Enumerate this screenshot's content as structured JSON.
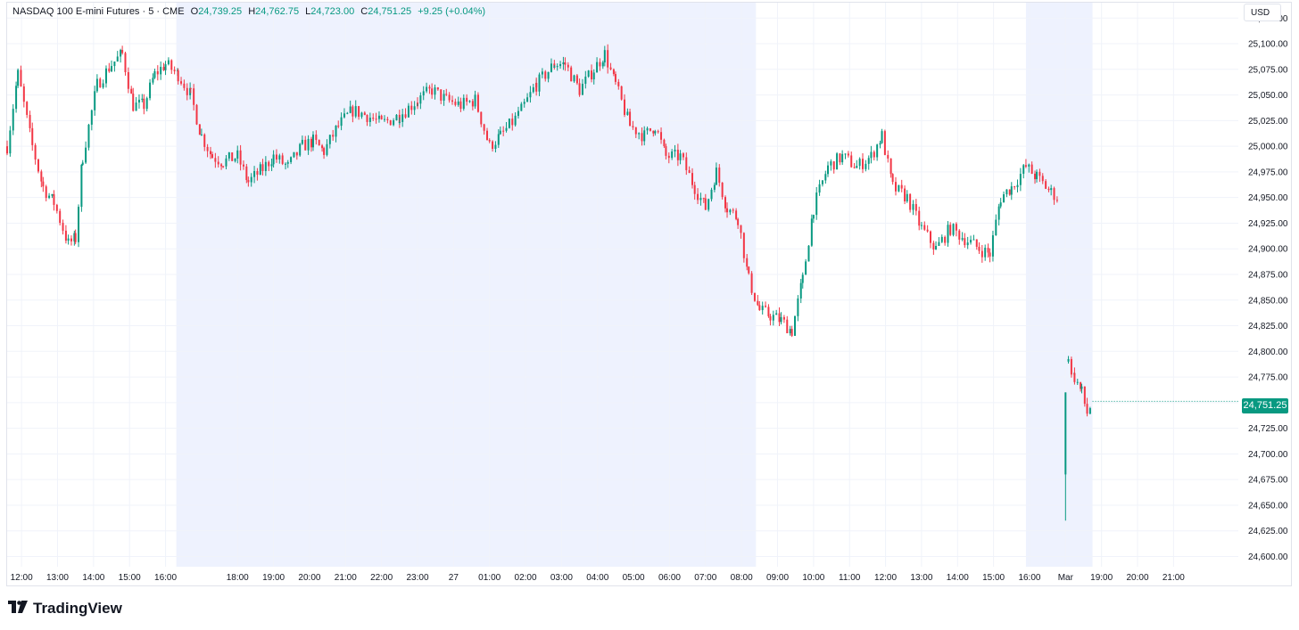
{
  "legend": {
    "title": "NASDAQ 100 E-mini Futures · 5 · CME",
    "o_label": "O",
    "o_value": "24,739.25",
    "h_label": "H",
    "h_value": "24,762.75",
    "l_label": "L",
    "l_value": "24,723.00",
    "c_label": "C",
    "c_value": "24,751.25",
    "change": "+9.25 (+0.04%)"
  },
  "currency": "USD",
  "last_price_label": "24,751.25",
  "branding": {
    "logo_text": "TradingView"
  },
  "colors": {
    "up": "#089981",
    "down": "#f23645",
    "session_shade": "#eef2fe",
    "grid": "#f0f3fa"
  },
  "chart_data": {
    "type": "candlestick",
    "yaxis": {
      "min": 24590,
      "max": 25140,
      "ticks": [
        25125,
        25100,
        25075,
        25050,
        25025,
        25000,
        24975,
        24950,
        24925,
        24900,
        24875,
        24850,
        24825,
        24800,
        24775,
        24750,
        24725,
        24700,
        24675,
        24650,
        24625,
        24600
      ],
      "tick_labels": [
        "25,125.00",
        "25,100.00",
        "25,075.00",
        "25,050.00",
        "25,025.00",
        "25,000.00",
        "24,975.00",
        "24,950.00",
        "24,925.00",
        "24,900.00",
        "24,875.00",
        "24,850.00",
        "24,825.00",
        "24,800.00",
        "24,775.00",
        "24,750.00",
        "24,725.00",
        "24,700.00",
        "24,675.00",
        "24,650.00",
        "24,625.00",
        "24,600.00"
      ]
    },
    "xaxis": {
      "start_hour": 11.6,
      "end_hour": 45.8,
      "ticks": [
        {
          "h": 12,
          "label": "12:00"
        },
        {
          "h": 13,
          "label": "13:00"
        },
        {
          "h": 14,
          "label": "14:00"
        },
        {
          "h": 15,
          "label": "15:00"
        },
        {
          "h": 16,
          "label": "16:00"
        },
        {
          "h": 18,
          "label": "18:00"
        },
        {
          "h": 19,
          "label": "19:00"
        },
        {
          "h": 20,
          "label": "20:00"
        },
        {
          "h": 21,
          "label": "21:00"
        },
        {
          "h": 22,
          "label": "22:00"
        },
        {
          "h": 23,
          "label": "23:00"
        },
        {
          "h": 24,
          "label": "27"
        },
        {
          "h": 25,
          "label": "01:00"
        },
        {
          "h": 26,
          "label": "02:00"
        },
        {
          "h": 27,
          "label": "03:00"
        },
        {
          "h": 28,
          "label": "04:00"
        },
        {
          "h": 29,
          "label": "05:00"
        },
        {
          "h": 30,
          "label": "06:00"
        },
        {
          "h": 31,
          "label": "07:00"
        },
        {
          "h": 32,
          "label": "08:00"
        },
        {
          "h": 33,
          "label": "09:00"
        },
        {
          "h": 34,
          "label": "10:00"
        },
        {
          "h": 35,
          "label": "11:00"
        },
        {
          "h": 36,
          "label": "12:00"
        },
        {
          "h": 37,
          "label": "13:00"
        },
        {
          "h": 38,
          "label": "14:00"
        },
        {
          "h": 39,
          "label": "15:00"
        },
        {
          "h": 40,
          "label": "16:00"
        },
        {
          "h": 41,
          "label": "Mar"
        },
        {
          "h": 42,
          "label": "19:00"
        },
        {
          "h": 43,
          "label": "20:00"
        },
        {
          "h": 44,
          "label": "21:00"
        }
      ]
    },
    "sessions_shaded": [
      [
        16.3,
        32.4
      ],
      [
        39.9,
        41.75
      ]
    ],
    "candle_interval_min": 5,
    "price_path": [
      {
        "h": 11.6,
        "p": 25000
      },
      {
        "h": 11.9,
        "p": 25070
      },
      {
        "h": 12.3,
        "p": 25000
      },
      {
        "h": 12.6,
        "p": 24960
      },
      {
        "h": 12.9,
        "p": 24945
      },
      {
        "h": 13.3,
        "p": 24905
      },
      {
        "h": 13.5,
        "p": 24910
      },
      {
        "h": 13.7,
        "p": 24990
      },
      {
        "h": 14.1,
        "p": 25060
      },
      {
        "h": 14.5,
        "p": 25080
      },
      {
        "h": 14.8,
        "p": 25090
      },
      {
        "h": 15.1,
        "p": 25040
      },
      {
        "h": 15.4,
        "p": 25040
      },
      {
        "h": 15.7,
        "p": 25070
      },
      {
        "h": 16.0,
        "p": 25080
      },
      {
        "h": 16.35,
        "p": 25070
      },
      {
        "h": 16.7,
        "p": 25050
      },
      {
        "h": 17.0,
        "p": 25010
      },
      {
        "h": 17.3,
        "p": 24990
      },
      {
        "h": 17.6,
        "p": 24985
      },
      {
        "h": 18.0,
        "p": 24990
      },
      {
        "h": 18.3,
        "p": 24965
      },
      {
        "h": 18.7,
        "p": 24978
      },
      {
        "h": 19.0,
        "p": 24990
      },
      {
        "h": 19.4,
        "p": 24980
      },
      {
        "h": 19.8,
        "p": 25000
      },
      {
        "h": 20.1,
        "p": 25005
      },
      {
        "h": 20.4,
        "p": 24995
      },
      {
        "h": 20.8,
        "p": 25020
      },
      {
        "h": 21.2,
        "p": 25035
      },
      {
        "h": 21.6,
        "p": 25030
      },
      {
        "h": 22.0,
        "p": 25022
      },
      {
        "h": 22.5,
        "p": 25030
      },
      {
        "h": 23.0,
        "p": 25045
      },
      {
        "h": 23.4,
        "p": 25055
      },
      {
        "h": 23.8,
        "p": 25045
      },
      {
        "h": 24.2,
        "p": 25040
      },
      {
        "h": 24.6,
        "p": 25045
      },
      {
        "h": 25.0,
        "p": 25000
      },
      {
        "h": 25.3,
        "p": 25010
      },
      {
        "h": 25.8,
        "p": 25030
      },
      {
        "h": 26.3,
        "p": 25060
      },
      {
        "h": 26.8,
        "p": 25080
      },
      {
        "h": 27.1,
        "p": 25080
      },
      {
        "h": 27.5,
        "p": 25055
      },
      {
        "h": 27.9,
        "p": 25075
      },
      {
        "h": 28.2,
        "p": 25090
      },
      {
        "h": 28.5,
        "p": 25060
      },
      {
        "h": 28.9,
        "p": 25020
      },
      {
        "h": 29.3,
        "p": 25010
      },
      {
        "h": 29.6,
        "p": 25020
      },
      {
        "h": 29.9,
        "p": 24990
      },
      {
        "h": 30.3,
        "p": 24990
      },
      {
        "h": 30.7,
        "p": 24960
      },
      {
        "h": 31.0,
        "p": 24940
      },
      {
        "h": 31.3,
        "p": 24975
      },
      {
        "h": 31.6,
        "p": 24940
      },
      {
        "h": 31.9,
        "p": 24930
      },
      {
        "h": 32.2,
        "p": 24870
      },
      {
        "h": 32.5,
        "p": 24840
      },
      {
        "h": 32.8,
        "p": 24835
      },
      {
        "h": 33.1,
        "p": 24830
      },
      {
        "h": 33.4,
        "p": 24820
      },
      {
        "h": 33.7,
        "p": 24870
      },
      {
        "h": 34.0,
        "p": 24940
      },
      {
        "h": 34.4,
        "p": 24980
      },
      {
        "h": 34.8,
        "p": 24990
      },
      {
        "h": 35.2,
        "p": 24980
      },
      {
        "h": 35.6,
        "p": 24990
      },
      {
        "h": 35.9,
        "p": 25010
      },
      {
        "h": 36.2,
        "p": 24960
      },
      {
        "h": 36.6,
        "p": 24950
      },
      {
        "h": 37.0,
        "p": 24920
      },
      {
        "h": 37.4,
        "p": 24900
      },
      {
        "h": 37.8,
        "p": 24920
      },
      {
        "h": 38.2,
        "p": 24910
      },
      {
        "h": 38.6,
        "p": 24900
      },
      {
        "h": 38.9,
        "p": 24895
      },
      {
        "h": 39.2,
        "p": 24950
      },
      {
        "h": 39.5,
        "p": 24960
      },
      {
        "h": 39.9,
        "p": 24980
      },
      {
        "h": 40.2,
        "p": 24970
      },
      {
        "h": 40.6,
        "p": 24955
      },
      {
        "h": 40.8,
        "p": 24950
      }
    ],
    "gap_segment": [
      {
        "h": 41.0,
        "p": 24675
      },
      {
        "h": 41.08,
        "p": 24785
      },
      {
        "h": 41.25,
        "p": 24775
      },
      {
        "h": 41.45,
        "p": 24760
      },
      {
        "h": 41.6,
        "p": 24740
      },
      {
        "h": 41.75,
        "p": 24751.25
      }
    ]
  }
}
